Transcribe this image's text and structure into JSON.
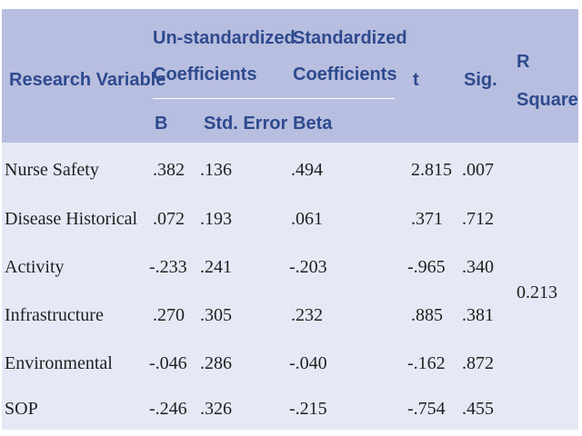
{
  "header": {
    "research_variable": "Research Variable",
    "unstd_line1": "Un-standardized",
    "unstd_line2": "Coefficients",
    "std_line1": "Standardized",
    "std_line2": "Coefficients",
    "t": "t",
    "sig": "Sig.",
    "r_square_line1": "R",
    "r_square_line2": "Square",
    "b": "B",
    "std_error": "Std. Error",
    "beta": "Beta"
  },
  "rows": [
    {
      "variable": "Nurse Safety",
      "b": ".382",
      "std_error": ".136",
      "beta": ".494",
      "t": "2.815",
      "sig": ".007"
    },
    {
      "variable": "Disease Historical",
      "b": ".072",
      "std_error": ".193",
      "beta": ".061",
      "t": ".371",
      "sig": ".712"
    },
    {
      "variable": "Activity",
      "b": "-.233",
      "std_error": ".241",
      "beta": "-.203",
      "t": "-.965",
      "sig": ".340"
    },
    {
      "variable": "Infrastructure",
      "b": ".270",
      "std_error": ".305",
      "beta": ".232",
      "t": ".885",
      "sig": ".381"
    },
    {
      "variable": "Environmental",
      "b": "-.046",
      "std_error": ".286",
      "beta": "-.040",
      "t": "-.162",
      "sig": ".872"
    },
    {
      "variable": "SOP",
      "b": "-.246",
      "std_error": ".326",
      "beta": "-.215",
      "t": "-.754",
      "sig": ".455"
    }
  ],
  "r_square_value": "0.213",
  "colors": {
    "header_bg": "#b8bedf",
    "header_text": "#2e4a8e",
    "body_bg": "#e6e9f5"
  }
}
